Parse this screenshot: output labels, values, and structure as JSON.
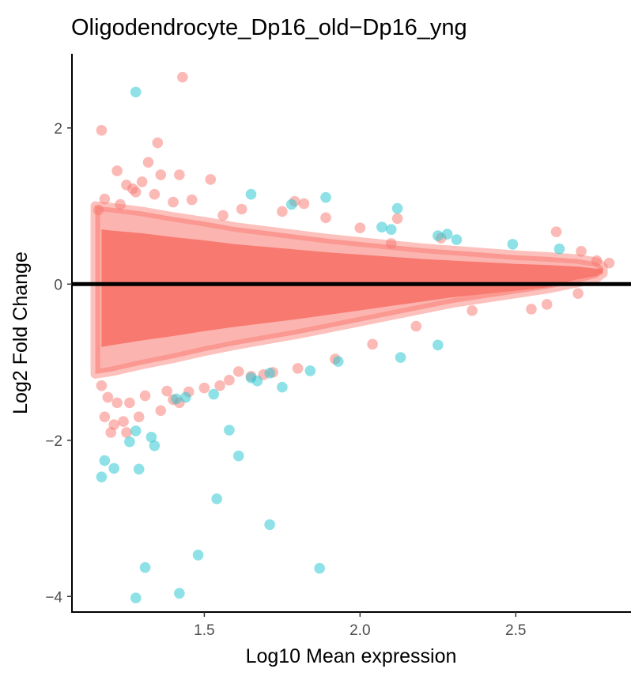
{
  "chart_data": {
    "type": "scatter",
    "title": "Oligodendrocyte_Dp16_old−Dp16_yng",
    "xlabel": "Log10 Mean expression",
    "ylabel": "Log2 Fold Change",
    "xlim": [
      1.075,
      2.87
    ],
    "ylim": [
      -4.2,
      2.95
    ],
    "x_ticks": [
      1.5,
      2.0,
      2.5
    ],
    "x_tick_labels": [
      "1.5",
      "2.0",
      "2.5"
    ],
    "y_ticks": [
      -4,
      -2,
      0,
      2
    ],
    "y_tick_labels": [
      "−4",
      "−2",
      "0",
      "2"
    ],
    "hline": 0,
    "grid": false,
    "legend": "none",
    "colors": {
      "not_significant": "#f8766d",
      "significant": "#2fc9d4",
      "hline": "#000000",
      "axis": "#000000"
    },
    "series": [
      {
        "points": [
          [
            1.43,
            2.65
          ],
          [
            1.17,
            1.97
          ],
          [
            1.35,
            1.81
          ],
          [
            1.32,
            1.56
          ],
          [
            1.22,
            1.45
          ],
          [
            1.36,
            1.4
          ],
          [
            1.42,
            1.4
          ],
          [
            1.52,
            1.34
          ],
          [
            1.3,
            1.31
          ],
          [
            1.25,
            1.27
          ],
          [
            1.27,
            1.22
          ],
          [
            1.28,
            1.18
          ],
          [
            1.34,
            1.15
          ],
          [
            1.46,
            1.08
          ],
          [
            1.4,
            1.05
          ],
          [
            1.79,
            1.06
          ],
          [
            1.82,
            1.03
          ],
          [
            2.12,
            0.84
          ],
          [
            2.63,
            0.67
          ],
          [
            2.26,
            0.59
          ],
          [
            2.1,
            0.52
          ],
          [
            2.8,
            0.27
          ],
          [
            1.18,
            1.09
          ],
          [
            1.23,
            1.02
          ],
          [
            1.62,
            0.96
          ],
          [
            1.75,
            0.93
          ],
          [
            1.56,
            0.88
          ],
          [
            1.89,
            0.85
          ],
          [
            2.0,
            0.72
          ],
          [
            1.17,
            -1.3
          ],
          [
            1.19,
            -1.45
          ],
          [
            1.22,
            -1.52
          ],
          [
            1.18,
            -1.7
          ],
          [
            1.21,
            -1.8
          ],
          [
            1.24,
            -1.76
          ],
          [
            1.26,
            -1.52
          ],
          [
            1.31,
            -1.43
          ],
          [
            1.4,
            -1.48
          ],
          [
            1.45,
            -1.38
          ],
          [
            1.25,
            -1.9
          ],
          [
            1.29,
            -1.7
          ],
          [
            1.2,
            -1.9
          ],
          [
            1.36,
            -1.62
          ],
          [
            1.42,
            -1.52
          ],
          [
            1.38,
            -1.37
          ],
          [
            1.5,
            -1.33
          ],
          [
            1.58,
            -1.23
          ],
          [
            1.65,
            -1.18
          ],
          [
            1.72,
            -1.13
          ],
          [
            1.8,
            -1.08
          ],
          [
            1.92,
            -0.96
          ],
          [
            2.04,
            -0.77
          ],
          [
            2.18,
            -0.54
          ],
          [
            2.36,
            -0.34
          ],
          [
            2.55,
            -0.32
          ],
          [
            2.6,
            -0.26
          ],
          [
            2.7,
            -0.12
          ],
          [
            2.76,
            0.3
          ],
          [
            2.71,
            0.42
          ],
          [
            1.16,
            0.95
          ],
          [
            1.55,
            -1.3
          ],
          [
            1.61,
            -1.12
          ],
          [
            1.69,
            -1.16
          ]
        ]
      },
      {
        "points": [
          [
            1.28,
            2.46
          ],
          [
            1.65,
            1.15
          ],
          [
            1.78,
            1.02
          ],
          [
            1.89,
            1.11
          ],
          [
            2.12,
            0.97
          ],
          [
            2.07,
            0.73
          ],
          [
            2.1,
            0.7
          ],
          [
            2.25,
            0.62
          ],
          [
            2.28,
            0.64
          ],
          [
            2.31,
            0.57
          ],
          [
            2.49,
            0.51
          ],
          [
            2.64,
            0.45
          ],
          [
            1.41,
            -1.47
          ],
          [
            1.44,
            -1.45
          ],
          [
            1.53,
            -1.41
          ],
          [
            1.65,
            -1.2
          ],
          [
            1.67,
            -1.24
          ],
          [
            1.71,
            -1.14
          ],
          [
            1.75,
            -1.32
          ],
          [
            1.84,
            -1.11
          ],
          [
            1.93,
            -0.99
          ],
          [
            2.13,
            -0.94
          ],
          [
            2.25,
            -0.78
          ],
          [
            1.28,
            -1.88
          ],
          [
            1.33,
            -1.96
          ],
          [
            1.34,
            -2.07
          ],
          [
            1.26,
            -2.02
          ],
          [
            1.18,
            -2.26
          ],
          [
            1.21,
            -2.36
          ],
          [
            1.17,
            -2.47
          ],
          [
            1.29,
            -2.37
          ],
          [
            1.58,
            -1.87
          ],
          [
            1.61,
            -2.2
          ],
          [
            1.54,
            -2.75
          ],
          [
            1.71,
            -3.08
          ],
          [
            1.48,
            -3.47
          ],
          [
            1.31,
            -3.63
          ],
          [
            1.87,
            -3.64
          ],
          [
            1.42,
            -3.96
          ],
          [
            1.28,
            -4.02
          ]
        ]
      }
    ],
    "dense_band": {
      "x": [
        1.15,
        1.2,
        1.3,
        1.4,
        1.5,
        1.6,
        1.7,
        1.8,
        1.9,
        2.0,
        2.1,
        2.2,
        2.3,
        2.4,
        2.5,
        2.6,
        2.7,
        2.76,
        2.78
      ],
      "upper": [
        1.0,
        0.98,
        0.93,
        0.86,
        0.8,
        0.73,
        0.68,
        0.63,
        0.58,
        0.54,
        0.5,
        0.46,
        0.43,
        0.4,
        0.37,
        0.35,
        0.32,
        0.28,
        0.22
      ],
      "lower": [
        -1.15,
        -1.12,
        -1.03,
        -0.95,
        -0.86,
        -0.78,
        -0.71,
        -0.64,
        -0.56,
        -0.48,
        -0.4,
        -0.32,
        -0.24,
        -0.18,
        -0.12,
        -0.06,
        0.02,
        0.08,
        0.14
      ]
    }
  }
}
